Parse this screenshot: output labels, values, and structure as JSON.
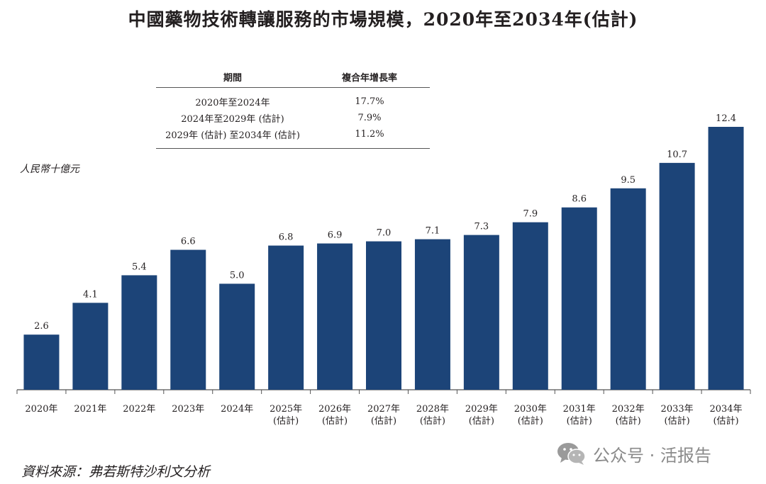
{
  "title": "中國藥物技術轉讓服務的市場規模，2020年至2034年(估計)",
  "cagr_table": {
    "headers": [
      "期間",
      "複合年增長率"
    ],
    "rows": [
      {
        "period": "2020年至2024年",
        "rate": "17.7%"
      },
      {
        "period": "2024年至2029年 (估計)",
        "rate": "7.9%"
      },
      {
        "period": "2029年 (估計) 至2034年 (估計)",
        "rate": "11.2%"
      }
    ]
  },
  "unit_label": "人民幣十億元",
  "source": "資料來源：弗若斯特沙利文分析",
  "watermark": "公众号 · 活报告",
  "colors": {
    "bar": "#1c4478",
    "text": "#231f20",
    "axis": "#555555"
  },
  "chart_data": {
    "type": "bar",
    "title": "中國藥物技術轉讓服務的市場規模，2020年至2034年(估計)",
    "ylabel": "人民幣十億元",
    "xlabel": "",
    "ylim": [
      0,
      12.4
    ],
    "grid": false,
    "categories": [
      [
        "2020年"
      ],
      [
        "2021年"
      ],
      [
        "2022年"
      ],
      [
        "2023年"
      ],
      [
        "2024年"
      ],
      [
        "2025年",
        "(估計)"
      ],
      [
        "2026年",
        "(估計)"
      ],
      [
        "2027年",
        "(估計)"
      ],
      [
        "2028年",
        "(估計)"
      ],
      [
        "2029年",
        "(估計)"
      ],
      [
        "2030年",
        "(估計)"
      ],
      [
        "2031年",
        "(估計)"
      ],
      [
        "2032年",
        "(估計)"
      ],
      [
        "2033年",
        "(估計)"
      ],
      [
        "2034年",
        "(估計)"
      ]
    ],
    "values": [
      2.6,
      4.1,
      5.4,
      6.6,
      5.0,
      6.8,
      6.9,
      7.0,
      7.1,
      7.3,
      7.9,
      8.6,
      9.5,
      10.7,
      12.4
    ],
    "value_labels": [
      "2.6",
      "4.1",
      "5.4",
      "6.6",
      "5.0",
      "6.8",
      "6.9",
      "7.0",
      "7.1",
      "7.3",
      "7.9",
      "8.6",
      "9.5",
      "10.7",
      "12.4"
    ]
  }
}
